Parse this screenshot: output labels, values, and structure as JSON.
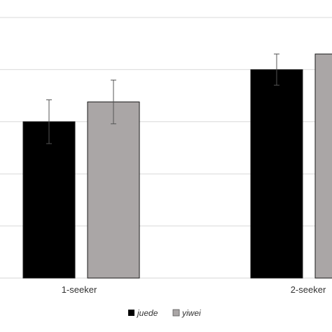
{
  "chart_data": {
    "type": "bar",
    "categories": [
      "1-seeker",
      "2-seeker"
    ],
    "series": [
      {
        "name": "juede",
        "color": "#000000",
        "values": [
          3.0,
          4.0
        ],
        "error": [
          0.42,
          0.3
        ]
      },
      {
        "name": "yiwei",
        "color": "#aaa6a6",
        "values": [
          3.38,
          4.3
        ],
        "error": [
          0.42,
          0.3
        ]
      }
    ],
    "ylim": [
      0,
      5
    ],
    "grid": true,
    "legend_position": "bottom",
    "title": "",
    "xlabel": "",
    "ylabel": ""
  }
}
